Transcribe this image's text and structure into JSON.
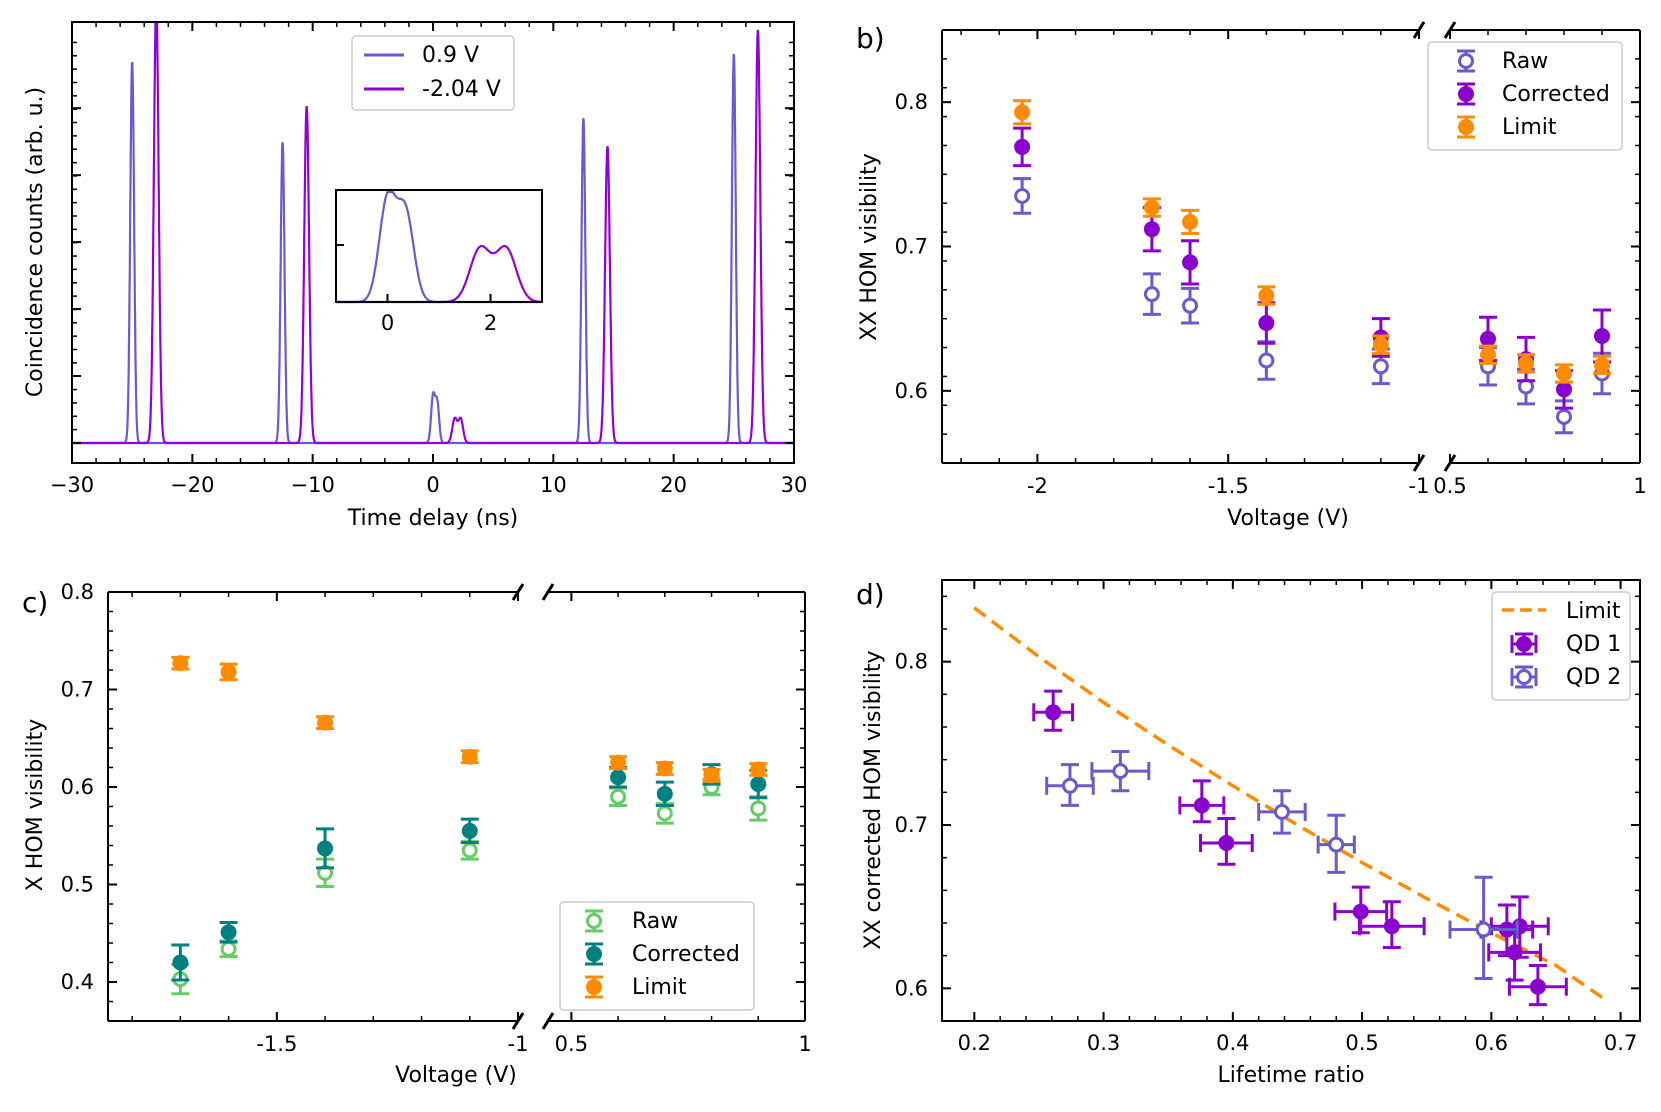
{
  "colors": {
    "raw_purple": "#6a5acd",
    "corrected_purple": "#8a00cc",
    "limit_orange": "#ff8c00",
    "raw_green": "#66cc66",
    "corrected_teal": "#008080",
    "trace_09": "#6a5acd",
    "trace_204": "#9400d3"
  },
  "chart_data": [
    {
      "id": "a",
      "panel_label": "",
      "type": "line",
      "xlabel": "Time delay (ns)",
      "ylabel": "Coincidence counts (arb. u.)",
      "xlim": [
        -30,
        30
      ],
      "ylim": [
        -0.05,
        1.05
      ],
      "xticks": [
        -30,
        -20,
        -10,
        0,
        10,
        20,
        30
      ],
      "xtick_labels": [
        "−30",
        "−20",
        "−10",
        "0",
        "10",
        "20",
        "30"
      ],
      "series": [
        {
          "name": "0.9 V",
          "color_key": "trace_09",
          "width": 0.16,
          "peaks": [
            [
              -25,
              0.95
            ],
            [
              -12.5,
              0.75
            ],
            [
              0,
              0.115
            ],
            [
              0.35,
              0.1
            ],
            [
              12.5,
              0.81
            ],
            [
              25,
              0.97
            ]
          ]
        },
        {
          "name": "-2.04 V",
          "color_key": "trace_204",
          "width": 0.2,
          "peaks": [
            [
              -23,
              1.1
            ],
            [
              -10.5,
              0.84
            ],
            [
              1.8,
              0.06
            ],
            [
              2.3,
              0.06
            ],
            [
              14.5,
              0.74
            ],
            [
              27,
              1.03
            ]
          ]
        }
      ],
      "legend": [
        "0.9 V",
        "-2.04 V"
      ],
      "inset": {
        "xlim": [
          -1,
          3
        ],
        "xticks": [
          0,
          2
        ],
        "xtick_labels": [
          "0",
          "2"
        ],
        "ylim": [
          0,
          0.115
        ]
      }
    },
    {
      "id": "b",
      "panel_label": "b)",
      "type": "scatter",
      "xlabel": "Voltage (V)",
      "ylabel": "XX HOM visibility",
      "broken_axis": true,
      "left_xlim": [
        -2.25,
        -1.0
      ],
      "right_xlim": [
        0.5,
        1.0
      ],
      "ylim": [
        0.55,
        0.85
      ],
      "yticks": [
        0.6,
        0.7,
        0.8
      ],
      "ytick_labels": [
        "0.6",
        "0.7",
        "0.8"
      ],
      "left_xticks": [
        -2,
        -1.5,
        -1
      ],
      "left_xtick_labels": [
        "-2",
        "-1.5",
        "-1"
      ],
      "right_xticks": [
        0.5,
        1.0
      ],
      "right_xtick_labels": [
        "0.5",
        "1"
      ],
      "series": [
        {
          "name": "Raw",
          "color_key": "raw_purple",
          "filled": false,
          "points": [
            [
              -2.04,
              0.735,
              0.012
            ],
            [
              -1.7,
              0.667,
              0.014
            ],
            [
              -1.6,
              0.659,
              0.012
            ],
            [
              -1.4,
              0.621,
              0.013
            ],
            [
              -1.1,
              0.617,
              0.012
            ],
            [
              0.6,
              0.617,
              0.013
            ],
            [
              0.7,
              0.603,
              0.012
            ],
            [
              0.8,
              0.582,
              0.011
            ],
            [
              0.9,
              0.612,
              0.014
            ]
          ]
        },
        {
          "name": "Corrected",
          "color_key": "corrected_purple",
          "filled": true,
          "points": [
            [
              -2.04,
              0.769,
              0.013
            ],
            [
              -1.7,
              0.712,
              0.015
            ],
            [
              -1.6,
              0.689,
              0.015
            ],
            [
              -1.4,
              0.647,
              0.014
            ],
            [
              -1.1,
              0.637,
              0.013
            ],
            [
              0.6,
              0.636,
              0.015
            ],
            [
              0.7,
              0.622,
              0.015
            ],
            [
              0.8,
              0.601,
              0.013
            ],
            [
              0.9,
              0.638,
              0.018
            ]
          ]
        },
        {
          "name": "Limit",
          "color_key": "limit_orange",
          "filled": true,
          "points": [
            [
              -2.04,
              0.793,
              0.008
            ],
            [
              -1.7,
              0.727,
              0.006
            ],
            [
              -1.6,
              0.717,
              0.008
            ],
            [
              -1.4,
              0.666,
              0.006
            ],
            [
              -1.1,
              0.632,
              0.006
            ],
            [
              0.6,
              0.625,
              0.006
            ],
            [
              0.7,
              0.619,
              0.006
            ],
            [
              0.8,
              0.612,
              0.006
            ],
            [
              0.9,
              0.618,
              0.006
            ]
          ]
        }
      ],
      "legend": [
        "Raw",
        "Corrected",
        "Limit"
      ]
    },
    {
      "id": "c",
      "panel_label": "c)",
      "type": "scatter",
      "xlabel": "Voltage (V)",
      "ylabel": "X HOM visibility",
      "broken_axis": true,
      "left_xlim": [
        -1.85,
        -1.0
      ],
      "right_xlim": [
        0.45,
        1.0
      ],
      "ylim": [
        0.36,
        0.8
      ],
      "yticks": [
        0.4,
        0.5,
        0.6,
        0.7,
        0.8
      ],
      "ytick_labels": [
        "0.4",
        "0.5",
        "0.6",
        "0.7",
        "0.8"
      ],
      "left_xticks": [
        -1.5,
        -1
      ],
      "left_xtick_labels": [
        "-1.5",
        "-1"
      ],
      "right_xticks": [
        0.5,
        1.0
      ],
      "right_xtick_labels": [
        "0.5",
        "1"
      ],
      "series": [
        {
          "name": "Raw",
          "color_key": "raw_green",
          "filled": false,
          "points": [
            [
              -1.7,
              0.403,
              0.015
            ],
            [
              -1.6,
              0.434,
              0.008
            ],
            [
              -1.4,
              0.512,
              0.014
            ],
            [
              -1.1,
              0.535,
              0.009
            ],
            [
              0.6,
              0.59,
              0.009
            ],
            [
              0.7,
              0.573,
              0.01
            ],
            [
              0.8,
              0.6,
              0.008
            ],
            [
              0.9,
              0.578,
              0.012
            ]
          ]
        },
        {
          "name": "Corrected",
          "color_key": "corrected_teal",
          "filled": true,
          "points": [
            [
              -1.7,
              0.42,
              0.018
            ],
            [
              -1.6,
              0.451,
              0.01
            ],
            [
              -1.4,
              0.537,
              0.02
            ],
            [
              -1.1,
              0.555,
              0.012
            ],
            [
              0.6,
              0.61,
              0.01
            ],
            [
              0.7,
              0.593,
              0.012
            ],
            [
              0.8,
              0.613,
              0.01
            ],
            [
              0.9,
              0.603,
              0.014
            ]
          ]
        },
        {
          "name": "Limit",
          "color_key": "limit_orange",
          "filled": true,
          "points": [
            [
              -1.7,
              0.727,
              0.006
            ],
            [
              -1.6,
              0.718,
              0.008
            ],
            [
              -1.4,
              0.666,
              0.006
            ],
            [
              -1.1,
              0.631,
              0.006
            ],
            [
              0.6,
              0.625,
              0.006
            ],
            [
              0.7,
              0.619,
              0.006
            ],
            [
              0.8,
              0.612,
              0.006
            ],
            [
              0.9,
              0.618,
              0.006
            ]
          ]
        }
      ],
      "legend": [
        "Raw",
        "Corrected",
        "Limit"
      ]
    },
    {
      "id": "d",
      "panel_label": "d)",
      "type": "scatter",
      "xlabel": "Lifetime ratio",
      "ylabel": "XX corrected HOM visibility",
      "xlim": [
        0.175,
        0.715
      ],
      "ylim": [
        0.58,
        0.85
      ],
      "xticks": [
        0.2,
        0.3,
        0.4,
        0.5,
        0.6,
        0.7
      ],
      "xtick_labels": [
        "0.2",
        "0.3",
        "0.4",
        "0.5",
        "0.6",
        "0.7"
      ],
      "yticks": [
        0.6,
        0.7,
        0.8
      ],
      "ytick_labels": [
        "0.6",
        "0.7",
        "0.8"
      ],
      "limit_curve": {
        "name": "Limit",
        "x": [
          0.2,
          0.25,
          0.3,
          0.35,
          0.4,
          0.45,
          0.5,
          0.55,
          0.6,
          0.65,
          0.69
        ],
        "y": [
          0.833,
          0.803,
          0.775,
          0.749,
          0.724,
          0.7,
          0.677,
          0.655,
          0.634,
          0.614,
          0.592
        ]
      },
      "series": [
        {
          "name": "QD 1",
          "color_key": "corrected_purple",
          "filled": true,
          "points": [
            [
              0.261,
              0.769,
              0.015,
              0.011,
              0.013
            ],
            [
              0.376,
              0.712,
              0.017,
              0.01,
              0.015
            ],
            [
              0.395,
              0.689,
              0.02,
              0.013,
              0.015
            ],
            [
              0.499,
              0.647,
              0.02,
              0.013,
              0.015
            ],
            [
              0.523,
              0.638,
              0.025,
              0.013,
              0.015
            ],
            [
              0.612,
              0.636,
              0.02,
              0.016,
              0.015
            ],
            [
              0.622,
              0.638,
              0.022,
              0.019,
              0.018
            ],
            [
              0.618,
              0.622,
              0.02,
              0.017,
              0.015
            ],
            [
              0.636,
              0.601,
              0.022,
              0.011,
              0.013
            ]
          ]
        },
        {
          "name": "QD 2",
          "color_key": "raw_purple",
          "filled": false,
          "points": [
            [
              0.274,
              0.724,
              0.018,
              0.012,
              0.013
            ],
            [
              0.313,
              0.733,
              0.022,
              0.012,
              0.012
            ],
            [
              0.438,
              0.708,
              0.018,
              0.013,
              0.013
            ],
            [
              0.48,
              0.688,
              0.014,
              0.017,
              0.018
            ],
            [
              0.594,
              0.636,
              0.026,
              0.03,
              0.032
            ]
          ]
        }
      ],
      "legend": [
        "Limit",
        "QD 1",
        "QD 2"
      ]
    }
  ]
}
